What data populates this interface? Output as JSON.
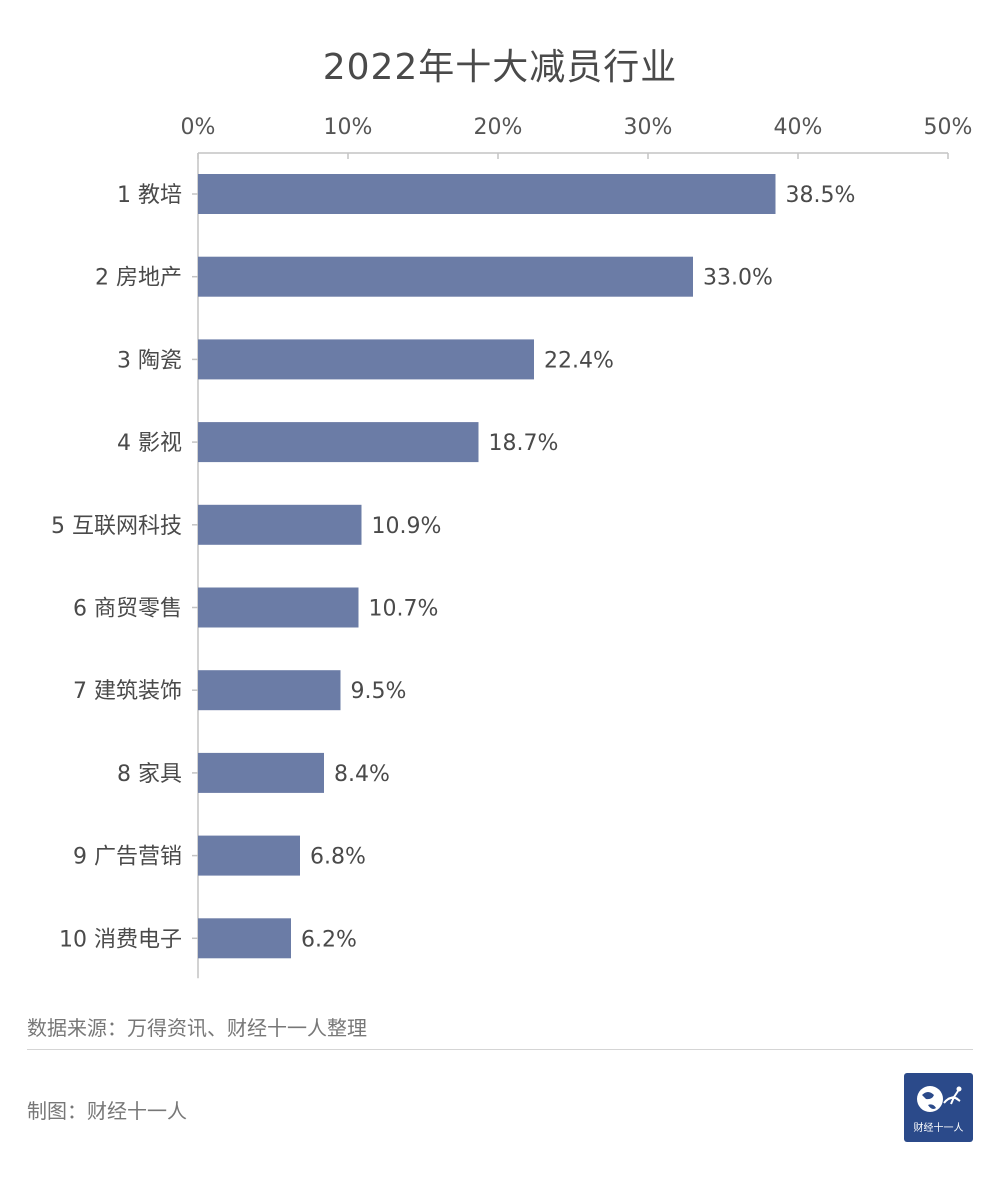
{
  "chart_data": {
    "type": "bar",
    "orientation": "horizontal",
    "title": "2022年十大减员行业",
    "categories": [
      "1 教培",
      "2 房地产",
      "3 陶瓷",
      "4 影视",
      "5 互联网科技",
      "6 商贸零售",
      "7 建筑装饰",
      "8 家具",
      "9 广告营销",
      "10 消费电子"
    ],
    "values": [
      38.5,
      33.0,
      22.4,
      18.7,
      10.9,
      10.7,
      9.5,
      8.4,
      6.8,
      6.2
    ],
    "value_labels": [
      "38.5%",
      "33.0%",
      "22.4%",
      "18.7%",
      "10.9%",
      "10.7%",
      "9.5%",
      "8.4%",
      "6.8%",
      "6.2%"
    ],
    "xlim": [
      0,
      50
    ],
    "xticks": [
      0,
      10,
      20,
      30,
      40,
      50
    ],
    "xtick_labels": [
      "0%",
      "10%",
      "20%",
      "30%",
      "40%",
      "50%"
    ],
    "axis_position": "top",
    "grid": false,
    "bar_color": "#6b7ca6"
  },
  "footer": {
    "source": "数据来源：万得资讯、财经十一人整理",
    "credit": "制图：财经十一人",
    "logo_text": "财经十一人"
  }
}
